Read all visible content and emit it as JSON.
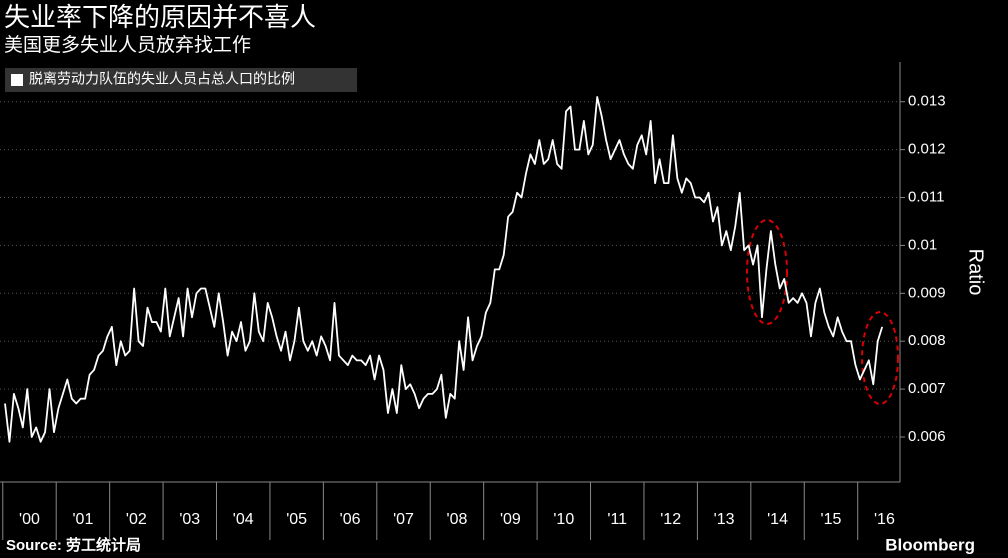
{
  "chart_data": {
    "type": "line",
    "title": "失业率下降的原因并不喜人",
    "subtitle": "美国更多失业人员放弃找工作",
    "y_axis_label": "Ratio",
    "source": "Source: 劳工统计局",
    "branding": "Bloomberg",
    "grid": true,
    "legend": "top-left",
    "xlim": [
      0,
      201
    ],
    "xticks": [
      {
        "value": 5.5,
        "label": "'00"
      },
      {
        "value": 17.5,
        "label": "'01"
      },
      {
        "value": 29.5,
        "label": "'02"
      },
      {
        "value": 41.5,
        "label": "'03"
      },
      {
        "value": 53.5,
        "label": "'04"
      },
      {
        "value": 65.5,
        "label": "'05"
      },
      {
        "value": 77.5,
        "label": "'06"
      },
      {
        "value": 89.5,
        "label": "'07"
      },
      {
        "value": 101.5,
        "label": "'08"
      },
      {
        "value": 113.5,
        "label": "'09"
      },
      {
        "value": 125.5,
        "label": "'10"
      },
      {
        "value": 137.5,
        "label": "'11"
      },
      {
        "value": 149.5,
        "label": "'12"
      },
      {
        "value": 161.5,
        "label": "'13"
      },
      {
        "value": 173.5,
        "label": "'14"
      },
      {
        "value": 185.5,
        "label": "'15"
      },
      {
        "value": 197.5,
        "label": "'16"
      }
    ],
    "ylim": [
      0.00506,
      0.01383
    ],
    "yticks": [
      0.006,
      0.007,
      0.008,
      0.009,
      0.01,
      0.011,
      0.012,
      0.013
    ],
    "series": [
      {
        "name": "脱离劳动力队伍的失业人员占总人口的比例",
        "color": "#ffffff",
        "values": [
          0.0067,
          0.0059,
          0.0069,
          0.0066,
          0.0062,
          0.007,
          0.006,
          0.0062,
          0.0059,
          0.0061,
          0.007,
          0.0061,
          0.0066,
          0.0069,
          0.0072,
          0.0068,
          0.0067,
          0.0068,
          0.0068,
          0.0073,
          0.0074,
          0.0077,
          0.0078,
          0.0081,
          0.0083,
          0.0075,
          0.008,
          0.0077,
          0.0078,
          0.0091,
          0.008,
          0.0079,
          0.0087,
          0.0084,
          0.0084,
          0.0082,
          0.0091,
          0.0081,
          0.0085,
          0.0089,
          0.0081,
          0.0091,
          0.0085,
          0.009,
          0.0091,
          0.0091,
          0.0087,
          0.0083,
          0.009,
          0.0084,
          0.0077,
          0.0082,
          0.008,
          0.0084,
          0.0078,
          0.008,
          0.009,
          0.0082,
          0.008,
          0.0088,
          0.0085,
          0.0081,
          0.0078,
          0.0082,
          0.0076,
          0.008,
          0.0087,
          0.008,
          0.0078,
          0.008,
          0.0077,
          0.0081,
          0.0079,
          0.0076,
          0.0088,
          0.0077,
          0.0076,
          0.0075,
          0.0077,
          0.0076,
          0.0076,
          0.0075,
          0.0077,
          0.0072,
          0.0077,
          0.0074,
          0.0065,
          0.007,
          0.0065,
          0.0075,
          0.007,
          0.0071,
          0.0069,
          0.0066,
          0.0068,
          0.0069,
          0.0069,
          0.007,
          0.0073,
          0.0064,
          0.0069,
          0.0068,
          0.008,
          0.0074,
          0.0085,
          0.0076,
          0.0079,
          0.0081,
          0.0086,
          0.0088,
          0.0095,
          0.0095,
          0.0098,
          0.0106,
          0.0107,
          0.0111,
          0.011,
          0.0115,
          0.0119,
          0.0117,
          0.0122,
          0.0117,
          0.0118,
          0.0122,
          0.0117,
          0.0116,
          0.0128,
          0.0129,
          0.012,
          0.012,
          0.0126,
          0.0119,
          0.0121,
          0.0131,
          0.0127,
          0.0122,
          0.0118,
          0.012,
          0.0122,
          0.0119,
          0.0117,
          0.0116,
          0.0121,
          0.0123,
          0.0119,
          0.0126,
          0.0113,
          0.0118,
          0.0113,
          0.0113,
          0.0123,
          0.0114,
          0.0111,
          0.0114,
          0.0113,
          0.011,
          0.011,
          0.0109,
          0.0111,
          0.0105,
          0.0108,
          0.01,
          0.0103,
          0.0099,
          0.0104,
          0.0111,
          0.0099,
          0.01,
          0.0096,
          0.01,
          0.0085,
          0.0095,
          0.0103,
          0.0096,
          0.0091,
          0.0093,
          0.0088,
          0.0089,
          0.0088,
          0.009,
          0.0088,
          0.0081,
          0.0088,
          0.0091,
          0.0086,
          0.0083,
          0.0081,
          0.0085,
          0.0082,
          0.008,
          0.008,
          0.0075,
          0.0072,
          0.0074,
          0.0076,
          0.0071,
          0.008,
          0.0083
        ]
      }
    ]
  }
}
